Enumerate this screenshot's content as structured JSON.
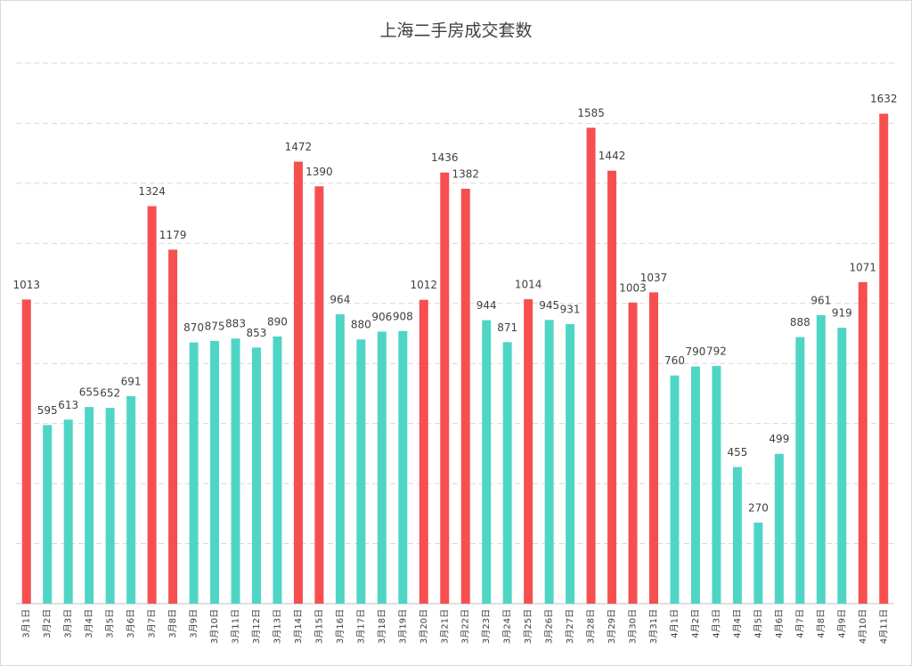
{
  "chart_data": {
    "type": "bar",
    "title": "上海二手房成交套数",
    "categories": [
      "3月1日",
      "3月2日",
      "3月3日",
      "3月4日",
      "3月5日",
      "3月6日",
      "3月7日",
      "3月8日",
      "3月9日",
      "3月10日",
      "3月11日",
      "3月12日",
      "3月13日",
      "3月14日",
      "3月15日",
      "3月16日",
      "3月17日",
      "3月18日",
      "3月19日",
      "3月20日",
      "3月21日",
      "3月22日",
      "3月23日",
      "3月24日",
      "3月25日",
      "3月26日",
      "3月27日",
      "3月28日",
      "3月29日",
      "3月30日",
      "3月31日",
      "4月1日",
      "4月2日",
      "4月3日",
      "4月4日",
      "4月5日",
      "4月6日",
      "4月7日",
      "4月8日",
      "4月9日",
      "4月10日",
      "4月11日"
    ],
    "values": [
      1013,
      595,
      613,
      655,
      652,
      691,
      1324,
      1179,
      870,
      875,
      883,
      853,
      890,
      1472,
      1390,
      964,
      880,
      906,
      908,
      1012,
      1436,
      1382,
      944,
      871,
      1014,
      945,
      931,
      1585,
      1442,
      1003,
      1037,
      760,
      790,
      792,
      455,
      270,
      499,
      888,
      961,
      919,
      1071,
      1632
    ],
    "colors": [
      "#f5504f",
      "#4fd5c6",
      "#4fd5c6",
      "#4fd5c6",
      "#4fd5c6",
      "#4fd5c6",
      "#f5504f",
      "#f5504f",
      "#4fd5c6",
      "#4fd5c6",
      "#4fd5c6",
      "#4fd5c6",
      "#4fd5c6",
      "#f5504f",
      "#f5504f",
      "#4fd5c6",
      "#4fd5c6",
      "#4fd5c6",
      "#4fd5c6",
      "#f5504f",
      "#f5504f",
      "#f5504f",
      "#4fd5c6",
      "#4fd5c6",
      "#f5504f",
      "#4fd5c6",
      "#4fd5c6",
      "#f5504f",
      "#f5504f",
      "#f5504f",
      "#f5504f",
      "#4fd5c6",
      "#4fd5c6",
      "#4fd5c6",
      "#4fd5c6",
      "#4fd5c6",
      "#4fd5c6",
      "#4fd5c6",
      "#4fd5c6",
      "#4fd5c6",
      "#f5504f",
      "#f5504f"
    ],
    "ylim": [
      0,
      1800
    ],
    "yticks": [
      0,
      200,
      400,
      600,
      800,
      1000,
      1200,
      1400,
      1600,
      1800
    ],
    "grid": true
  }
}
